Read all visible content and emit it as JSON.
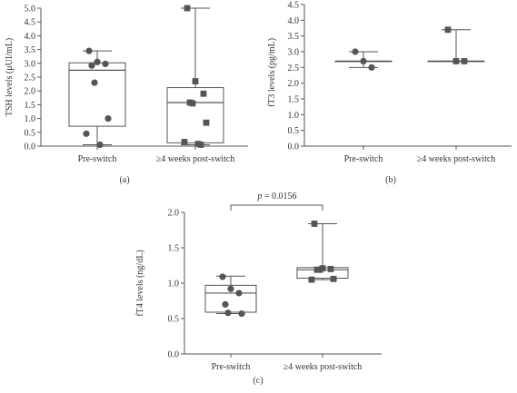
{
  "colors": {
    "axis": "#555555",
    "box": "#555555",
    "marker": "#555555",
    "text": "#333333"
  },
  "chart_data": [
    {
      "type": "box",
      "panel_label": "(a)",
      "title": "",
      "xlabel": "",
      "ylabel": "TSH levels (μUI/mL)",
      "ylim": [
        0,
        5.0
      ],
      "yticks": [
        0.0,
        0.5,
        1.0,
        1.5,
        2.0,
        2.5,
        3.0,
        3.5,
        4.0,
        4.5,
        5.0
      ],
      "ytick_labels": [
        "0.0",
        "0.5",
        "1.0",
        "1.5",
        "2.0",
        "2.5",
        "3.0",
        "3.5",
        "4.0",
        "4.5",
        "5.0"
      ],
      "categories": [
        "Pre-switch",
        "≥4 weeks post-switch"
      ],
      "series": [
        {
          "marker": "circle",
          "min": 0.05,
          "q1": 0.72,
          "median": 2.75,
          "q3": 3.02,
          "max": 3.45,
          "points": [
            3.45,
            3.05,
            2.98,
            2.92,
            2.3,
            1.0,
            0.45,
            0.05
          ]
        },
        {
          "marker": "square",
          "min": 0.05,
          "q1": 0.12,
          "median": 1.58,
          "q3": 2.12,
          "max": 5.0,
          "points": [
            5.0,
            2.35,
            1.9,
            1.58,
            1.55,
            0.85,
            0.15,
            0.08,
            0.05
          ]
        }
      ]
    },
    {
      "type": "box",
      "panel_label": "(b)",
      "title": "",
      "xlabel": "",
      "ylabel": "fT3 levels (pg/mL)",
      "ylim": [
        0,
        4.5
      ],
      "yticks": [
        0.0,
        0.5,
        1.0,
        1.5,
        2.0,
        2.5,
        3.0,
        3.5,
        4.0,
        4.5
      ],
      "ytick_labels": [
        "0.0",
        "0.5",
        "1.0",
        "1.5",
        "2.0",
        "2.5",
        "3.0",
        "3.5",
        "4.0",
        "4.5"
      ],
      "categories": [
        "Pre-switch",
        "≥4 weeks post-switch"
      ],
      "series": [
        {
          "marker": "circle",
          "min": 2.5,
          "q1": 2.7,
          "median": 2.7,
          "q3": 2.7,
          "max": 3.0,
          "points": [
            3.0,
            2.7,
            2.5
          ]
        },
        {
          "marker": "square",
          "min": 2.7,
          "q1": 2.7,
          "median": 2.7,
          "q3": 2.7,
          "max": 3.7,
          "points": [
            3.7,
            2.7,
            2.7
          ]
        }
      ]
    },
    {
      "type": "box",
      "panel_label": "(c)",
      "title": "",
      "xlabel": "",
      "ylabel": "fT4 levels (ng/dL)",
      "ylim": [
        0,
        2.0
      ],
      "yticks": [
        0.0,
        0.5,
        1.0,
        1.5,
        2.0
      ],
      "ytick_labels": [
        "0.0",
        "0.5",
        "1.0",
        "1.5",
        "2.0"
      ],
      "categories": [
        "Pre-switch",
        "≥4 weeks post-switch"
      ],
      "annotation": {
        "prefix": "p",
        "text": " = 0.0156"
      },
      "series": [
        {
          "marker": "circle",
          "min": 0.57,
          "q1": 0.59,
          "median": 0.86,
          "q3": 0.97,
          "max": 1.1,
          "points": [
            1.09,
            0.92,
            0.86,
            0.7,
            0.58,
            0.57
          ]
        },
        {
          "marker": "square",
          "min": 1.05,
          "q1": 1.07,
          "median": 1.19,
          "q3": 1.22,
          "max": 1.84,
          "points": [
            1.84,
            1.21,
            1.2,
            1.19,
            1.19,
            1.06,
            1.05
          ]
        }
      ]
    }
  ]
}
